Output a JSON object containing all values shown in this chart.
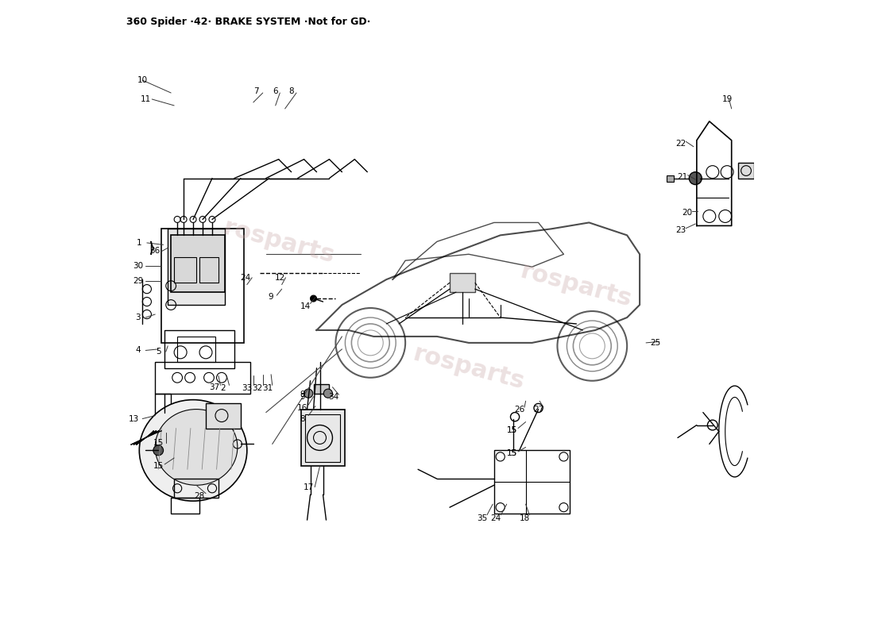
{
  "title": "360 Spider ·42· BRAKE SYSTEM ·Not for GD·",
  "title_fontsize": 9,
  "bg_color": "#ffffff",
  "line_color": "#000000",
  "watermark_text": "rosparts",
  "watermark_color": "#c8a8a8",
  "watermark_alpha": 0.35,
  "fig_width": 11.0,
  "fig_height": 8.0,
  "dpi": 100
}
